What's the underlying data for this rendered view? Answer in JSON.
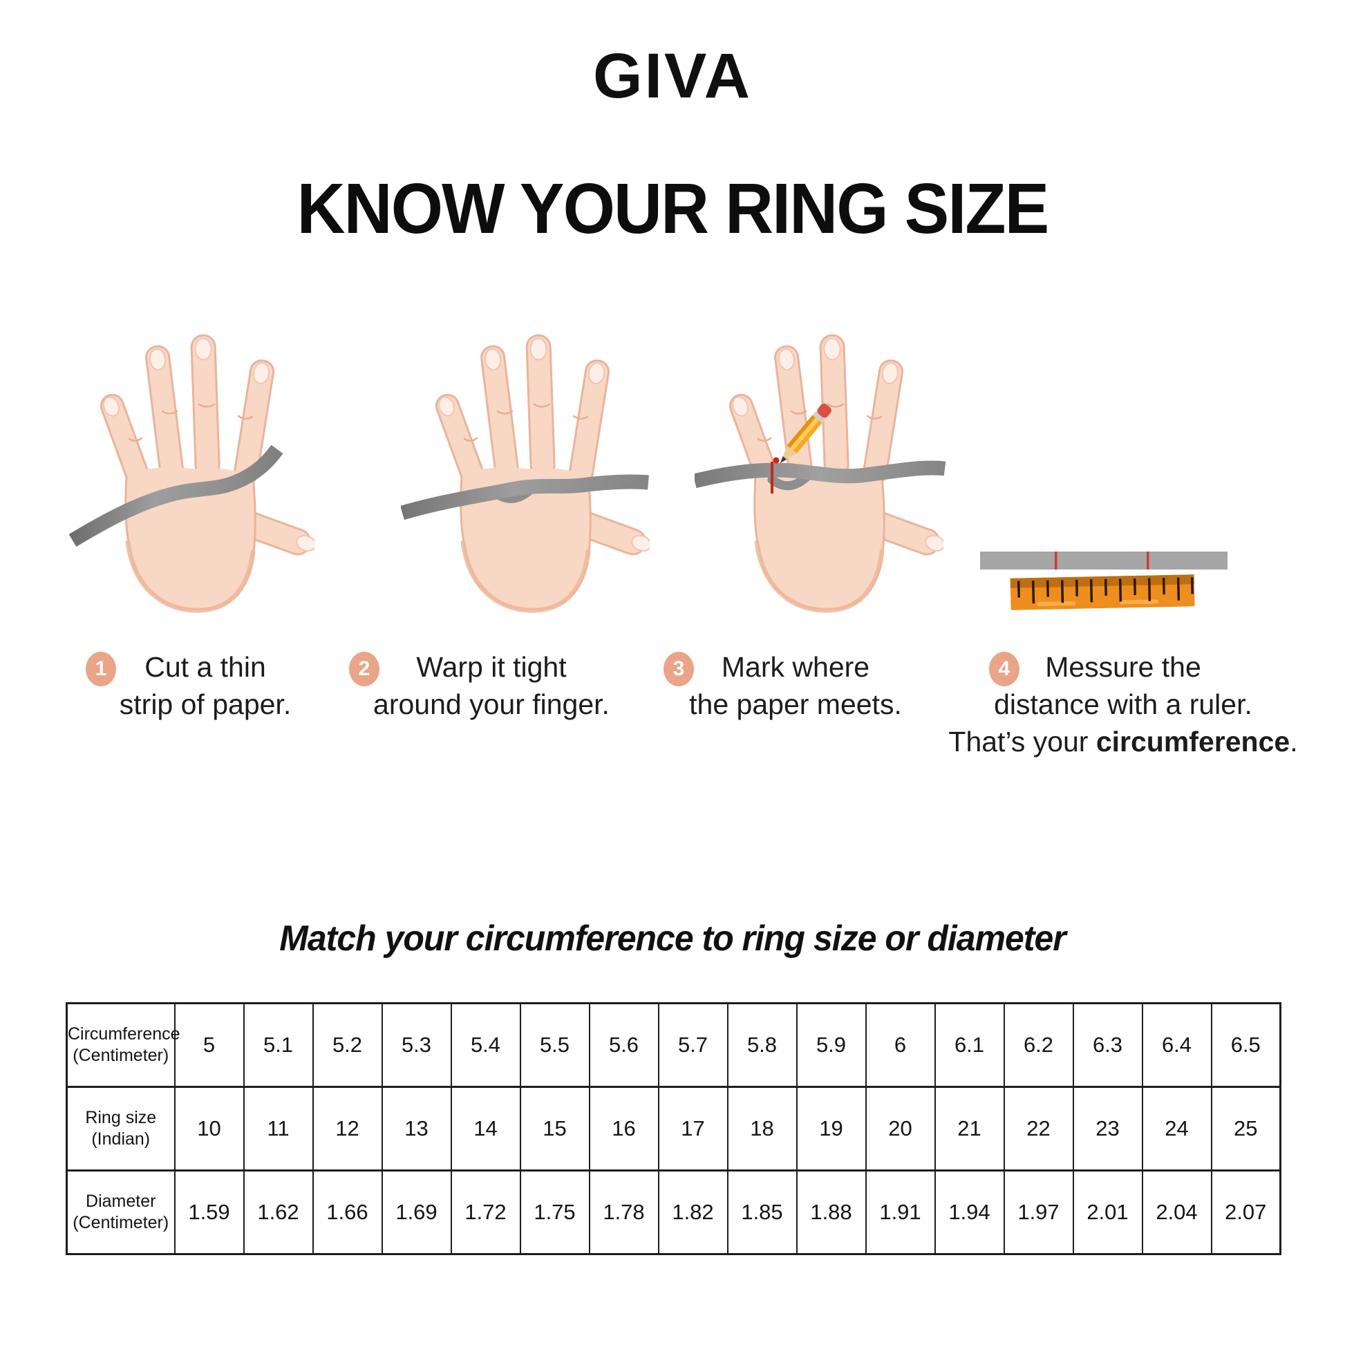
{
  "brand": {
    "logo_text": "GIVA"
  },
  "heading": "KNOW YOUR RING SIZE",
  "steps": [
    {
      "number": "1",
      "lines": [
        "Cut a thin",
        "strip of paper."
      ]
    },
    {
      "number": "2",
      "lines": [
        "Warp it tight",
        "around your finger."
      ]
    },
    {
      "number": "3",
      "lines": [
        "Mark where",
        "the paper meets."
      ]
    },
    {
      "number": "4",
      "lines": [
        "Messure the",
        "distance with a ruler."
      ],
      "line3": {
        "prefix": "That’s your ",
        "bold": "circumference",
        "suffix": "."
      }
    }
  ],
  "illustrations": {
    "step1": "hand-with-paper-strip",
    "step2": "hand-strip-wrapped-around-finger",
    "step3": "hand-strip-pencil-mark",
    "step4": "marked-paper-strip-and-ruler"
  },
  "section": {
    "title": "Match your circumference to ring size or diameter"
  },
  "table": {
    "rows": [
      {
        "header_line1": "Circumference",
        "header_line2": "(Centimeter)",
        "values": [
          "5",
          "5.1",
          "5.2",
          "5.3",
          "5.4",
          "5.5",
          "5.6",
          "5.7",
          "5.8",
          "5.9",
          "6",
          "6.1",
          "6.2",
          "6.3",
          "6.4",
          "6.5"
        ]
      },
      {
        "header_line1": "Ring size",
        "header_line2": "(Indian)",
        "values": [
          "10",
          "11",
          "12",
          "13",
          "14",
          "15",
          "16",
          "17",
          "18",
          "19",
          "20",
          "21",
          "22",
          "23",
          "24",
          "25"
        ]
      },
      {
        "header_line1": "Diameter",
        "header_line2": "(Centimeter)",
        "values": [
          "1.59",
          "1.62",
          "1.66",
          "1.69",
          "1.72",
          "1.75",
          "1.78",
          "1.82",
          "1.85",
          "1.88",
          "1.91",
          "1.94",
          "1.97",
          "2.01",
          "2.04",
          "2.07"
        ]
      }
    ]
  },
  "chart_data": {
    "type": "table",
    "title": "Match your circumference to ring size or diameter",
    "rows": [
      {
        "label": "Circumference (Centimeter)",
        "values": [
          5,
          5.1,
          5.2,
          5.3,
          5.4,
          5.5,
          5.6,
          5.7,
          5.8,
          5.9,
          6,
          6.1,
          6.2,
          6.3,
          6.4,
          6.5
        ]
      },
      {
        "label": "Ring size (Indian)",
        "values": [
          10,
          11,
          12,
          13,
          14,
          15,
          16,
          17,
          18,
          19,
          20,
          21,
          22,
          23,
          24,
          25
        ]
      },
      {
        "label": "Diameter (Centimeter)",
        "values": [
          1.59,
          1.62,
          1.66,
          1.69,
          1.72,
          1.75,
          1.78,
          1.82,
          1.85,
          1.88,
          1.91,
          1.94,
          1.97,
          2.01,
          2.04,
          2.07
        ]
      }
    ]
  },
  "colors": {
    "badge": "#EAA487",
    "skin": "#F8D7C5",
    "skin_shadow": "#E9B49B",
    "paper_strip": "#949494",
    "ruler_orange": "#EE8E1E",
    "ruler_band": "#BE6F12",
    "pencil_yellow": "#F7A81B",
    "eraser_red": "#D94F46",
    "mark_red": "#C5281C",
    "text": "#1A1A1A"
  }
}
